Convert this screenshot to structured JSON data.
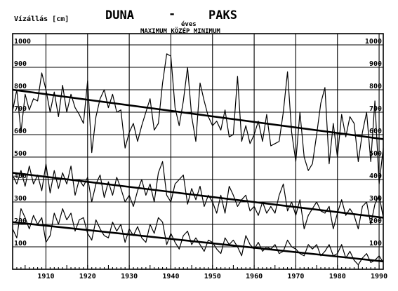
{
  "chart_data": {
    "type": "line",
    "title_left": "DUNA",
    "title_dash": "-",
    "title_right": "PAKS",
    "subtitle": "éves",
    "legend_line": "MAXIMUM KÖZÉP MINIMUM",
    "ylabel": "Vízállás [cm]",
    "ylim": [
      0,
      1050
    ],
    "xlim": [
      1902,
      1991
    ],
    "y_ticks": [
      100,
      200,
      300,
      400,
      500,
      600,
      700,
      800,
      900,
      1000
    ],
    "x_ticks": [
      1910,
      1920,
      1930,
      1940,
      1950,
      1960,
      1970,
      1980,
      1990
    ],
    "grid": true,
    "series": [
      {
        "x": [
          1902,
          1903,
          1904,
          1905,
          1906,
          1907,
          1908,
          1909,
          1910,
          1911,
          1912,
          1913,
          1914,
          1915,
          1916,
          1917,
          1918,
          1919,
          1920,
          1921,
          1922,
          1923,
          1924,
          1925,
          1926,
          1927,
          1928,
          1929,
          1930,
          1931,
          1932,
          1933,
          1934,
          1935,
          1936,
          1937,
          1938,
          1939,
          1940,
          1941,
          1942,
          1943,
          1944,
          1945,
          1946,
          1947,
          1948,
          1949,
          1950,
          1951,
          1952,
          1953,
          1954,
          1955,
          1956,
          1957,
          1958,
          1959,
          1960,
          1961,
          1962,
          1963,
          1964,
          1965,
          1966,
          1967,
          1968,
          1969,
          1970,
          1971,
          1972,
          1973,
          1974,
          1975,
          1976,
          1977,
          1978,
          1979,
          1980,
          1981,
          1982,
          1983,
          1984,
          1985,
          1986,
          1987,
          1988,
          1989,
          1990,
          1991
        ],
        "values": [
          705,
          800,
          610,
          780,
          710,
          760,
          750,
          875,
          800,
          700,
          790,
          680,
          820,
          700,
          780,
          720,
          690,
          650,
          840,
          520,
          680,
          760,
          800,
          720,
          780,
          700,
          710,
          540,
          610,
          650,
          570,
          640,
          700,
          760,
          620,
          650,
          830,
          960,
          950,
          720,
          640,
          750,
          900,
          680,
          570,
          830,
          750,
          680,
          640,
          660,
          620,
          710,
          590,
          600,
          860,
          570,
          640,
          560,
          600,
          660,
          570,
          690,
          550,
          560,
          570,
          700,
          880,
          610,
          480,
          700,
          500,
          440,
          470,
          600,
          740,
          810,
          470,
          650,
          500,
          690,
          590,
          680,
          650,
          480,
          610,
          700,
          480,
          750,
          380,
          540
        ]
      },
      {
        "x": [
          1902,
          1903,
          1904,
          1905,
          1906,
          1907,
          1908,
          1909,
          1910,
          1911,
          1912,
          1913,
          1914,
          1915,
          1916,
          1917,
          1918,
          1919,
          1920,
          1921,
          1922,
          1923,
          1924,
          1925,
          1926,
          1927,
          1928,
          1929,
          1930,
          1931,
          1932,
          1933,
          1934,
          1935,
          1936,
          1937,
          1938,
          1939,
          1940,
          1941,
          1942,
          1943,
          1944,
          1945,
          1946,
          1947,
          1948,
          1949,
          1950,
          1951,
          1952,
          1953,
          1954,
          1955,
          1956,
          1957,
          1958,
          1959,
          1960,
          1961,
          1962,
          1963,
          1964,
          1965,
          1966,
          1967,
          1968,
          1969,
          1970,
          1971,
          1972,
          1973,
          1974,
          1975,
          1976,
          1977,
          1978,
          1979,
          1980,
          1981,
          1982,
          1983,
          1984,
          1985,
          1986,
          1987,
          1988,
          1989,
          1990,
          1991
        ],
        "values": [
          420,
          380,
          440,
          370,
          460,
          380,
          420,
          350,
          470,
          340,
          440,
          360,
          430,
          380,
          460,
          330,
          400,
          370,
          410,
          300,
          380,
          420,
          320,
          390,
          330,
          410,
          360,
          300,
          330,
          280,
          350,
          400,
          330,
          380,
          300,
          430,
          480,
          330,
          300,
          380,
          400,
          420,
          290,
          360,
          310,
          370,
          280,
          330,
          300,
          250,
          330,
          250,
          370,
          330,
          280,
          310,
          330,
          260,
          280,
          240,
          300,
          250,
          280,
          250,
          330,
          380,
          260,
          300,
          240,
          310,
          180,
          240,
          270,
          300,
          260,
          250,
          280,
          180,
          250,
          310,
          240,
          270,
          240,
          180,
          280,
          300,
          200,
          290,
          330,
          230
        ]
      },
      {
        "x": [
          1902,
          1903,
          1904,
          1905,
          1906,
          1907,
          1908,
          1909,
          1910,
          1911,
          1912,
          1913,
          1914,
          1915,
          1916,
          1917,
          1918,
          1919,
          1920,
          1921,
          1922,
          1923,
          1924,
          1925,
          1926,
          1927,
          1928,
          1929,
          1930,
          1931,
          1932,
          1933,
          1934,
          1935,
          1936,
          1937,
          1938,
          1939,
          1940,
          1941,
          1942,
          1943,
          1944,
          1945,
          1946,
          1947,
          1948,
          1949,
          1950,
          1951,
          1952,
          1953,
          1954,
          1955,
          1956,
          1957,
          1958,
          1959,
          1960,
          1961,
          1962,
          1963,
          1964,
          1965,
          1966,
          1967,
          1968,
          1969,
          1970,
          1971,
          1972,
          1973,
          1974,
          1975,
          1976,
          1977,
          1978,
          1979,
          1980,
          1981,
          1982,
          1983,
          1984,
          1985,
          1986,
          1987,
          1988,
          1989,
          1990,
          1991
        ],
        "values": [
          180,
          140,
          270,
          230,
          180,
          240,
          200,
          230,
          120,
          150,
          250,
          200,
          270,
          220,
          250,
          170,
          220,
          230,
          160,
          130,
          220,
          180,
          150,
          140,
          210,
          170,
          200,
          120,
          180,
          150,
          190,
          140,
          120,
          200,
          160,
          230,
          210,
          110,
          160,
          120,
          90,
          150,
          170,
          110,
          140,
          110,
          80,
          130,
          120,
          90,
          70,
          140,
          110,
          130,
          100,
          60,
          150,
          110,
          90,
          120,
          80,
          100,
          90,
          110,
          70,
          80,
          130,
          100,
          90,
          70,
          60,
          110,
          90,
          110,
          60,
          80,
          110,
          60,
          70,
          110,
          50,
          80,
          40,
          20,
          50,
          70,
          30,
          40,
          60,
          30
        ]
      }
    ],
    "trend_lines": [
      {
        "x": [
          1902,
          1991
        ],
        "y": [
          800,
          580
        ]
      },
      {
        "x": [
          1902,
          1991
        ],
        "y": [
          430,
          230
        ]
      },
      {
        "x": [
          1902,
          1991
        ],
        "y": [
          210,
          35
        ]
      }
    ]
  }
}
